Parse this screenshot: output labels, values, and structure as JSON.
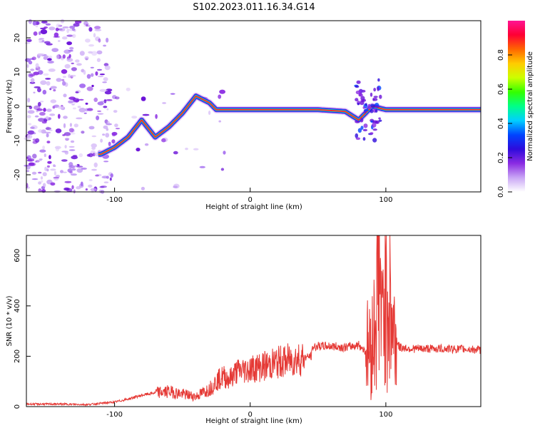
{
  "title": "S102.2023.011.16.34.G14",
  "chart_data": [
    {
      "type": "heatmap",
      "xlabel": "Height of straight line (km)",
      "ylabel": "Frequency (Hz)",
      "xlim": [
        -165,
        170
      ],
      "ylim": [
        -25,
        25
      ],
      "x_ticks": [
        -100,
        0,
        100
      ],
      "y_ticks": [
        -20,
        -10,
        0,
        10,
        20
      ],
      "colorbar": {
        "label": "Normalized spectral amplitude",
        "range": [
          0,
          1
        ],
        "ticks": [
          "0.0",
          "0.2",
          "0.4",
          "0.6",
          "0.8"
        ],
        "colors": [
          "#ffffff",
          "#c9a6f5",
          "#8a2be2",
          "#2e0bdc",
          "#0044ff",
          "#00d0ff",
          "#00ff88",
          "#33ff00",
          "#ccff00",
          "#ffcc00",
          "#ff6600",
          "#ff0033",
          "#ff1493"
        ]
      },
      "ridge": [
        {
          "x": -110,
          "y": -14
        },
        {
          "x": -100,
          "y": -12
        },
        {
          "x": -90,
          "y": -9
        },
        {
          "x": -80,
          "y": -4
        },
        {
          "x": -70,
          "y": -9
        },
        {
          "x": -60,
          "y": -6
        },
        {
          "x": -50,
          "y": -2
        },
        {
          "x": -40,
          "y": 3
        },
        {
          "x": -30,
          "y": 1
        },
        {
          "x": -25,
          "y": -1
        },
        {
          "x": -10,
          "y": -1
        },
        {
          "x": 0,
          "y": -1
        },
        {
          "x": 50,
          "y": -1
        },
        {
          "x": 70,
          "y": -1.5
        },
        {
          "x": 80,
          "y": -4
        },
        {
          "x": 90,
          "y": 0
        },
        {
          "x": 100,
          "y": -1
        },
        {
          "x": 170,
          "y": -1
        }
      ]
    },
    {
      "type": "line",
      "xlabel": "Height of straight line (km)",
      "ylabel": "SNR (10 * v/v)",
      "xlim": [
        -165,
        170
      ],
      "ylim": [
        0,
        680
      ],
      "x_ticks": [
        -100,
        0,
        100
      ],
      "y_ticks": [
        0,
        200,
        400,
        600
      ],
      "color": "#e53935",
      "series": [
        {
          "x": [
            -165,
            -140,
            -120,
            -100,
            -90,
            -80,
            -70,
            -60,
            -50,
            -40,
            -30,
            -25,
            -20,
            -15,
            -10,
            0,
            10,
            20,
            30,
            40,
            45,
            46,
            50,
            60,
            70,
            80,
            85,
            90,
            93,
            95,
            97,
            100,
            102,
            105,
            110,
            120,
            140,
            160,
            170
          ],
          "y": [
            10,
            10,
            8,
            18,
            30,
            45,
            55,
            60,
            50,
            40,
            70,
            100,
            120,
            110,
            140,
            150,
            160,
            175,
            185,
            195,
            200,
            235,
            240,
            240,
            235,
            245,
            220,
            250,
            400,
            600,
            300,
            560,
            450,
            310,
            235,
            230,
            230,
            228,
            225
          ]
        }
      ]
    }
  ]
}
